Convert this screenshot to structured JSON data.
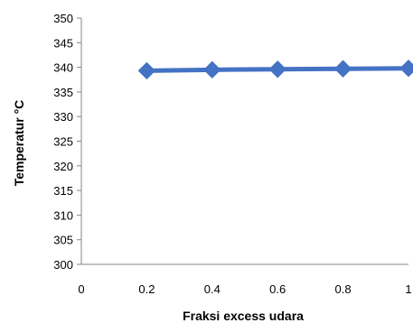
{
  "chart_data": {
    "type": "line",
    "title": "",
    "xlabel": "Fraksi excess udara",
    "ylabel": "Temperatur °C",
    "xlim": [
      0,
      1
    ],
    "ylim": [
      300,
      350
    ],
    "x_ticks": [
      "0",
      "0.2",
      "0.4",
      "0.6",
      "0.8",
      "1"
    ],
    "y_ticks": [
      "300",
      "305",
      "310",
      "315",
      "320",
      "325",
      "330",
      "335",
      "340",
      "345",
      "350"
    ],
    "x_tick_values": [
      0,
      0.2,
      0.4,
      0.6,
      0.8,
      1
    ],
    "y_tick_values": [
      300,
      305,
      310,
      315,
      320,
      325,
      330,
      335,
      340,
      345,
      350
    ],
    "grid": false,
    "legend": "none",
    "series": [
      {
        "x": [
          0.2,
          0.4,
          0.6,
          0.8,
          1.0
        ],
        "values": [
          339.3,
          339.5,
          339.6,
          339.7,
          339.8
        ],
        "color": "#4472c4",
        "marker": "diamond"
      }
    ]
  }
}
